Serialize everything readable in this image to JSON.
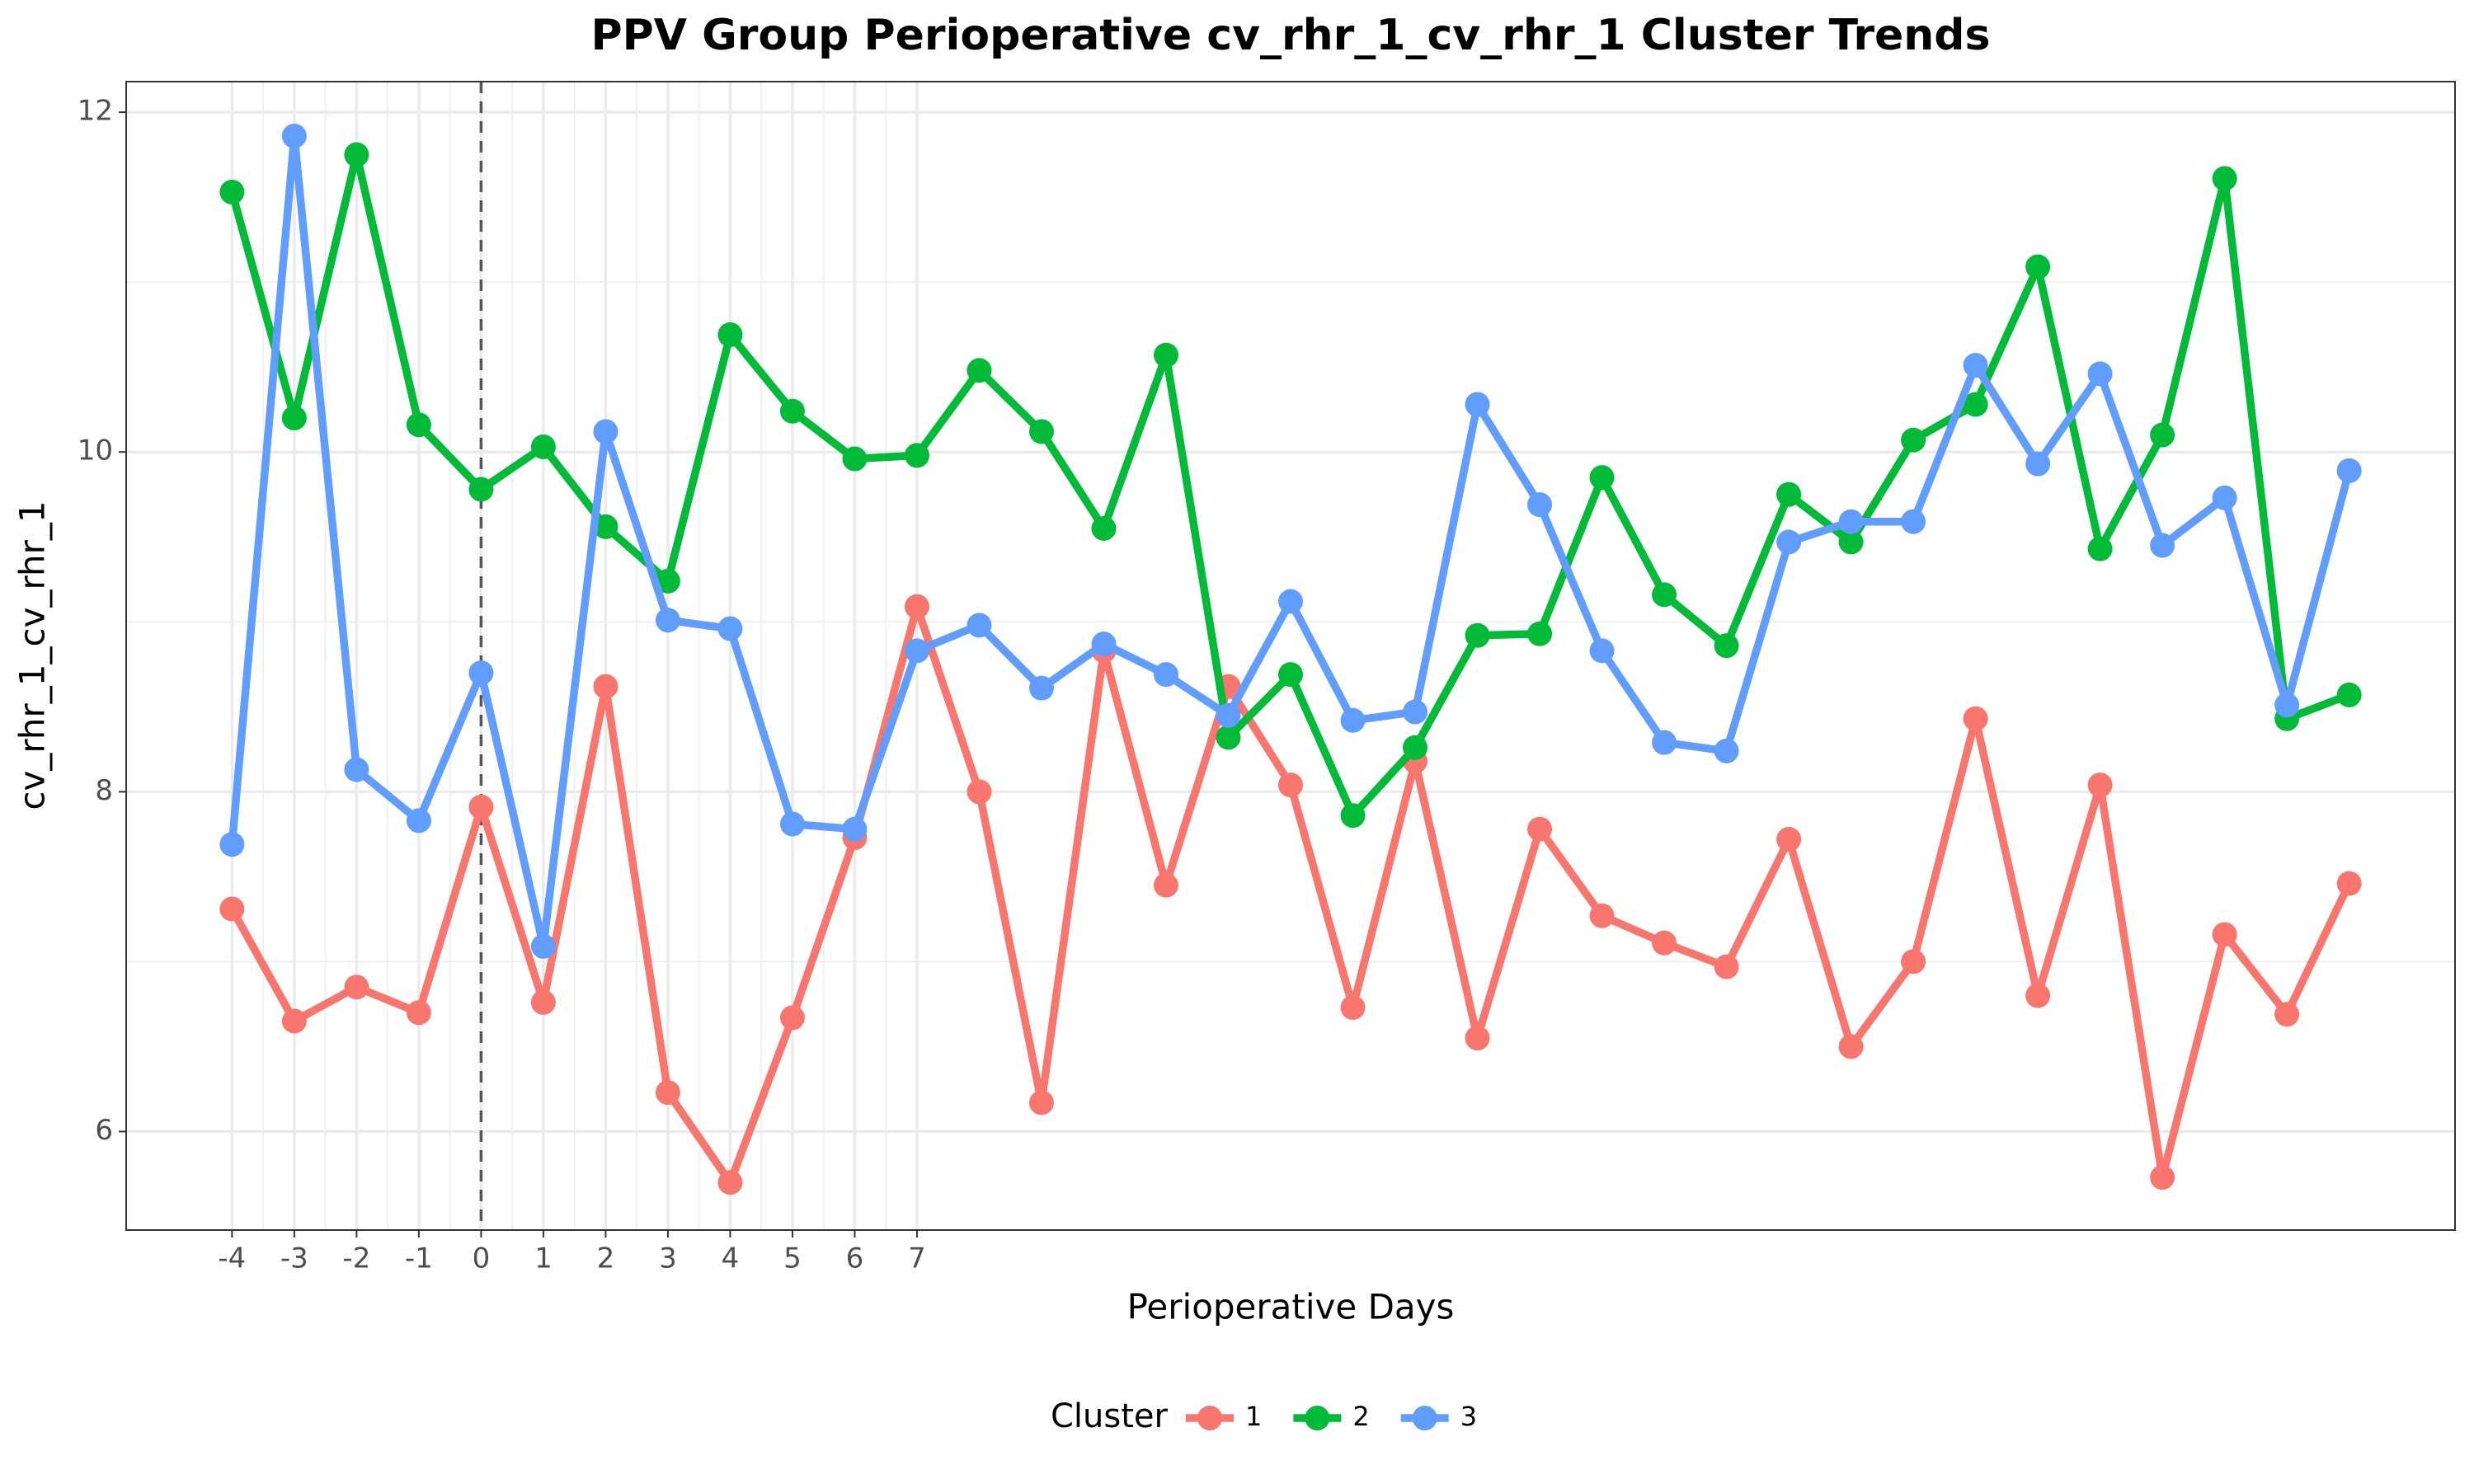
{
  "chart_data": {
    "type": "line",
    "title": "PPV Group Perioperative cv_rhr_1_cv_rhr_1 Cluster Trends",
    "x_label": "Perioperative Days",
    "y_label": "cv_rhr_1_cv_rhr_1",
    "legend_title": "Cluster",
    "legend": "bottom",
    "grid": true,
    "vline": 0,
    "x": [
      -4,
      -3,
      -2,
      -1,
      0,
      1,
      2,
      3,
      4,
      5,
      6,
      7,
      8,
      9,
      10,
      11,
      12,
      13,
      14,
      15,
      16,
      17,
      18,
      19,
      20,
      21,
      22,
      23,
      24,
      25,
      26,
      27,
      28,
      29,
      30
    ],
    "series": [
      {
        "name": "1",
        "color": "#F8766D",
        "values": [
          7.31,
          6.65,
          6.85,
          6.7,
          7.91,
          6.76,
          8.62,
          6.23,
          5.7,
          6.67,
          7.73,
          9.09,
          8.0,
          6.17,
          8.83,
          7.45,
          8.62,
          8.04,
          6.73,
          8.18,
          6.55,
          7.78,
          7.27,
          7.11,
          6.97,
          7.72,
          6.5,
          7.0,
          8.43,
          6.8,
          8.04,
          5.73,
          7.16,
          6.69,
          7.46
        ]
      },
      {
        "name": "2",
        "color": "#00BA38",
        "values": [
          11.53,
          10.2,
          11.75,
          10.16,
          9.78,
          10.03,
          9.56,
          9.24,
          10.69,
          10.24,
          9.96,
          9.98,
          10.48,
          10.12,
          9.55,
          10.57,
          8.32,
          8.69,
          7.86,
          8.26,
          8.92,
          8.93,
          9.85,
          9.16,
          8.86,
          9.75,
          9.47,
          10.07,
          10.28,
          11.09,
          9.43,
          10.1,
          11.61,
          8.43,
          8.57
        ]
      },
      {
        "name": "3",
        "color": "#619CFF",
        "values": [
          7.69,
          11.86,
          8.13,
          7.83,
          8.7,
          7.09,
          10.12,
          9.01,
          8.96,
          7.81,
          7.78,
          8.83,
          8.98,
          8.61,
          8.87,
          8.69,
          8.45,
          9.12,
          8.42,
          8.47,
          10.28,
          9.69,
          8.83,
          8.29,
          8.24,
          9.47,
          9.59,
          9.59,
          10.51,
          9.93,
          10.46,
          9.45,
          9.73,
          8.51,
          9.89
        ]
      }
    ],
    "xlim": [
      -5.7,
      31.7
    ],
    "xticks": [
      -4,
      -3,
      -2,
      -1,
      0,
      1,
      2,
      3,
      4,
      5,
      6,
      7
    ],
    "ylim": [
      5.42,
      12.18
    ],
    "yticks": [
      6,
      8,
      10,
      12
    ]
  }
}
